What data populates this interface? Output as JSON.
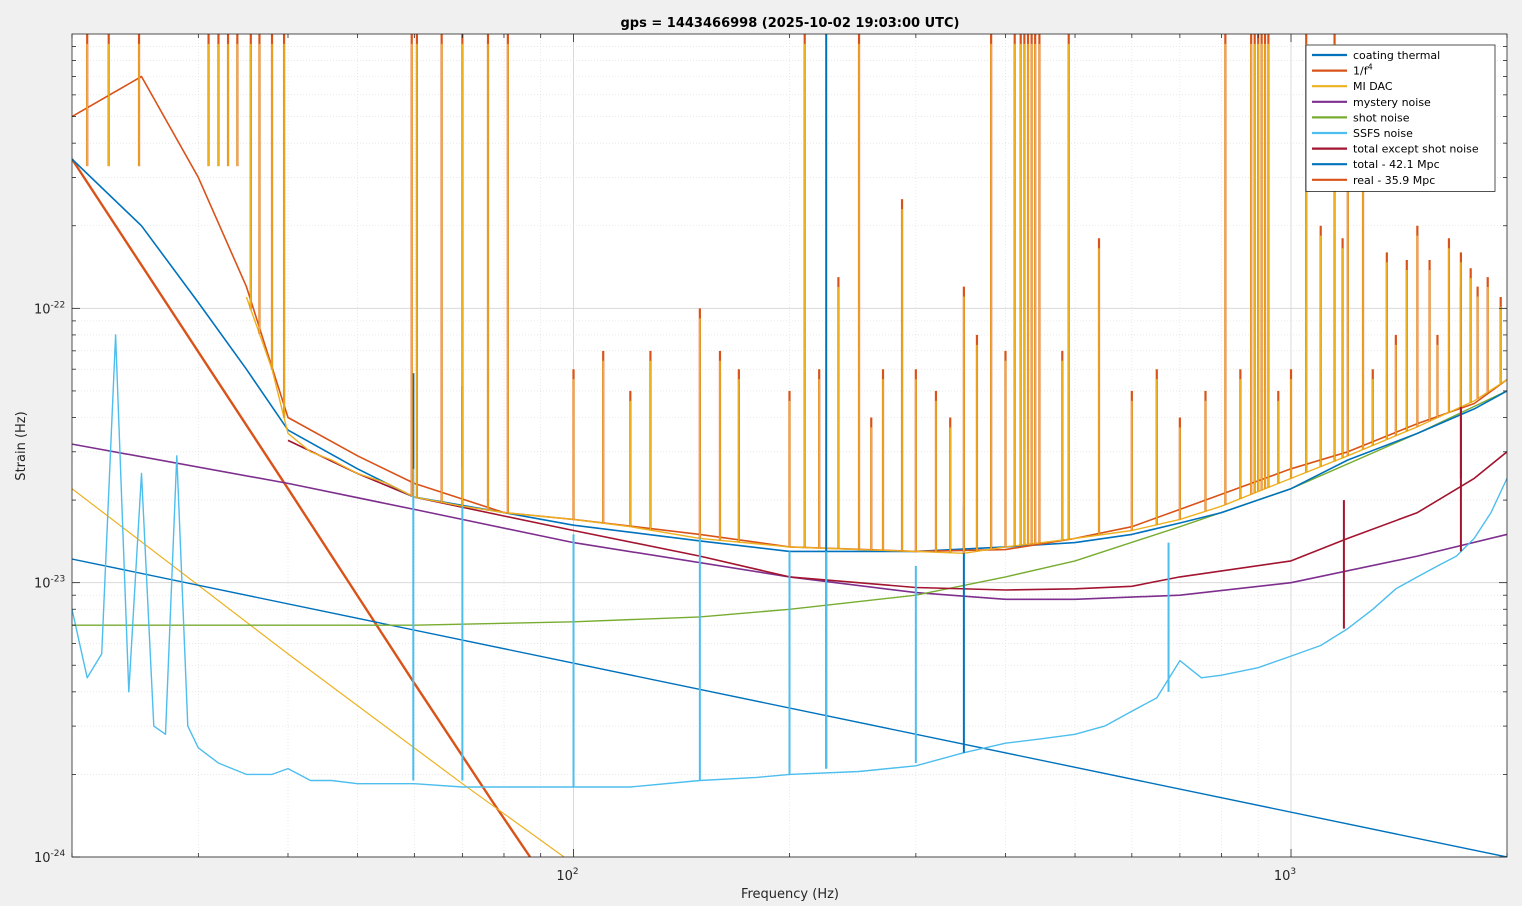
{
  "chart_data": {
    "type": "line",
    "title": "gps = 1443466998 (2025-10-02 19:03:00 UTC)",
    "xlabel": "Frequency (Hz)",
    "ylabel": "Strain (Hz)",
    "x_scale": "log",
    "y_scale": "log",
    "xlim": [
      20,
      2000
    ],
    "ylim": [
      1e-24,
      1e-21
    ],
    "grid": true,
    "minor_grid": true,
    "legend_position": "top-right",
    "x_ticks": [
      {
        "value": 100,
        "base": "10",
        "exp": "2"
      },
      {
        "value": 1000,
        "base": "10",
        "exp": "3"
      }
    ],
    "y_ticks": [
      {
        "value": 1e-24,
        "base": "10",
        "exp": "-24"
      },
      {
        "value": 1e-23,
        "base": "10",
        "exp": "-23"
      },
      {
        "value": 1e-22,
        "base": "10",
        "exp": "-22"
      }
    ],
    "series": [
      {
        "name": "coating thermal",
        "name_sup": "",
        "color": "#0072bd",
        "width": 1.4,
        "x": [
          20,
          2000
        ],
        "y": [
          1.22e-23,
          1e-24
        ]
      },
      {
        "name": "1/f",
        "name_sup": "4",
        "color": "#d95319",
        "width": 2.4,
        "x": [
          20,
          40,
          60,
          77,
          87
        ],
        "y": [
          3.5e-22,
          2.2e-23,
          4.3e-24,
          1.6e-24,
          1e-24
        ]
      },
      {
        "name": "MI DAC",
        "name_sup": "",
        "color": "#edb120",
        "width": 1.2,
        "x": [
          20,
          40,
          70,
          97
        ],
        "y": [
          2.2e-23,
          5.5e-24,
          1.85e-24,
          1e-24
        ]
      },
      {
        "name": "mystery noise",
        "name_sup": "",
        "color": "#7e2f8e",
        "width": 1.6,
        "x": [
          20,
          40,
          60,
          100,
          200,
          300,
          400,
          500,
          700,
          1000,
          1500,
          2000
        ],
        "y": [
          3.2e-23,
          2.3e-23,
          1.85e-23,
          1.4e-23,
          1.05e-23,
          9.2e-24,
          8.7e-24,
          8.7e-24,
          9e-24,
          1e-23,
          1.25e-23,
          1.5e-23
        ]
      },
      {
        "name": "shot noise",
        "name_sup": "",
        "color": "#77ac30",
        "width": 1.4,
        "x": [
          20,
          60,
          100,
          150,
          200,
          300,
          400,
          500,
          700,
          1000,
          1500,
          2000
        ],
        "y": [
          7e-24,
          7e-24,
          7.2e-24,
          7.5e-24,
          8e-24,
          9e-24,
          1.05e-23,
          1.2e-23,
          1.6e-23,
          2.2e-23,
          3.5e-23,
          5e-23
        ]
      },
      {
        "name": "SSFS noise",
        "name_sup": "",
        "color": "#4dbeee",
        "width": 1.4,
        "x": [
          20,
          21,
          22,
          23,
          24,
          25,
          26,
          27,
          28,
          29,
          30,
          32,
          35,
          38,
          40,
          43,
          46,
          50,
          55,
          60,
          70,
          80,
          100,
          120,
          150,
          180,
          200,
          250,
          300,
          350,
          400,
          450,
          500,
          550,
          600,
          650,
          700,
          750,
          800,
          900,
          1000,
          1100,
          1200,
          1300,
          1400,
          1500,
          1600,
          1700,
          1800,
          1900,
          2000
        ],
        "y": [
          8e-24,
          4.5e-24,
          5.5e-24,
          8e-23,
          4e-24,
          2.5e-23,
          3e-24,
          2.8e-24,
          2.9e-23,
          3e-24,
          2.5e-24,
          2.2e-24,
          2e-24,
          2e-24,
          2.1e-24,
          1.9e-24,
          1.9e-24,
          1.85e-24,
          1.85e-24,
          1.85e-24,
          1.8e-24,
          1.8e-24,
          1.8e-24,
          1.8e-24,
          1.9e-24,
          1.95e-24,
          2e-24,
          2.05e-24,
          2.15e-24,
          2.4e-24,
          2.6e-24,
          2.7e-24,
          2.8e-24,
          3e-24,
          3.4e-24,
          3.8e-24,
          5.2e-24,
          4.5e-24,
          4.6e-24,
          4.9e-24,
          5.4e-24,
          5.9e-24,
          6.8e-24,
          8e-24,
          9.5e-24,
          1.05e-23,
          1.15e-23,
          1.25e-23,
          1.45e-23,
          1.8e-23,
          2.4e-23
        ]
      },
      {
        "name": "total except shot noise",
        "name_sup": "",
        "color": "#a2142f",
        "width": 1.6,
        "x": [
          40,
          50,
          60,
          80,
          100,
          150,
          200,
          300,
          400,
          500,
          600,
          700,
          1000,
          1200,
          1500,
          1800,
          2000
        ],
        "y": [
          3.3e-23,
          2.5e-23,
          2.05e-23,
          1.75e-23,
          1.55e-23,
          1.25e-23,
          1.05e-23,
          9.6e-24,
          9.4e-24,
          9.5e-24,
          9.7e-24,
          1.05e-23,
          1.2e-23,
          1.45e-23,
          1.8e-23,
          2.4e-23,
          3e-23
        ]
      },
      {
        "name": "total - 42.1 Mpc",
        "name_sup": "",
        "color": "#0072bd",
        "width": 1.6,
        "x": [
          20,
          25,
          30,
          35,
          40,
          50,
          60,
          80,
          100,
          150,
          200,
          300,
          400,
          500,
          600,
          700,
          800,
          1000,
          1200,
          1500,
          1800,
          2000
        ],
        "y": [
          3.5e-22,
          2e-22,
          1.05e-22,
          6e-23,
          3.6e-23,
          2.6e-23,
          2.05e-23,
          1.8e-23,
          1.62e-23,
          1.42e-23,
          1.3e-23,
          1.3e-23,
          1.35e-23,
          1.4e-23,
          1.5e-23,
          1.65e-23,
          1.8e-23,
          2.2e-23,
          2.8e-23,
          3.5e-23,
          4.3e-23,
          5e-23
        ]
      },
      {
        "name": "real - 35.9 Mpc",
        "name_sup": "",
        "color": "#d95319",
        "width": 1.6,
        "x": [
          20,
          25,
          30,
          35,
          40,
          50,
          60,
          80,
          100,
          150,
          200,
          300,
          400,
          500,
          600,
          700,
          800,
          1000,
          1200,
          1500,
          1800,
          2000
        ],
        "y": [
          5e-22,
          7e-22,
          3e-22,
          1.2e-22,
          4e-23,
          2.9e-23,
          2.3e-23,
          1.8e-23,
          1.7e-23,
          1.5e-23,
          1.35e-23,
          1.3e-23,
          1.32e-23,
          1.45e-23,
          1.6e-23,
          1.85e-23,
          2.1e-23,
          2.6e-23,
          3e-23,
          3.8e-23,
          4.5e-23,
          5.5e-23
        ]
      },
      {
        "name": "",
        "name_sup": "",
        "color": "#edb120",
        "width": 1.4,
        "legend": false,
        "x": [
          35,
          38,
          40,
          43,
          46,
          50,
          55,
          60,
          70,
          80,
          100,
          120,
          150,
          200,
          250,
          300,
          350,
          400,
          450,
          500,
          600,
          700,
          800,
          1000,
          1200,
          1500,
          1800,
          2000
        ],
        "y": [
          1.1e-22,
          6e-23,
          3.5e-23,
          3e-23,
          2.8e-23,
          2.5e-23,
          2.3e-23,
          2.05e-23,
          1.9e-23,
          1.8e-23,
          1.7e-23,
          1.6e-23,
          1.45e-23,
          1.35e-23,
          1.32e-23,
          1.3e-23,
          1.28e-23,
          1.35e-23,
          1.4e-23,
          1.45e-23,
          1.55e-23,
          1.7e-23,
          1.9e-23,
          2.4e-23,
          2.9e-23,
          3.7e-23,
          4.6e-23,
          5.5e-23
        ]
      }
    ],
    "spikes": [
      {
        "x": 59.8,
        "ylo": 1.9e-24,
        "yhi": 5.8e-23,
        "color": "#4dbeee"
      },
      {
        "x": 59.8,
        "ylo": 2.6e-23,
        "yhi": 5.8e-23,
        "color": "#0072bd"
      },
      {
        "x": 70.0,
        "ylo": 1.9e-24,
        "yhi": 5.2e-23,
        "color": "#4dbeee"
      },
      {
        "x": 70.0,
        "ylo": 2.6e-23,
        "yhi": 5.2e-23,
        "color": "#0072bd"
      },
      {
        "x": 100,
        "ylo": 1.8e-24,
        "yhi": 1.5e-23,
        "color": "#4dbeee"
      },
      {
        "x": 150,
        "ylo": 1.9e-24,
        "yhi": 1.5e-23,
        "color": "#4dbeee"
      },
      {
        "x": 200,
        "ylo": 2e-24,
        "yhi": 1.3e-23,
        "color": "#4dbeee"
      },
      {
        "x": 225,
        "ylo": 2.1e-24,
        "yhi": 1e-21,
        "color": "#0072bd"
      },
      {
        "x": 225,
        "ylo": 2.1e-24,
        "yhi": 1.3e-23,
        "color": "#4dbeee"
      },
      {
        "x": 300,
        "ylo": 2.2e-24,
        "yhi": 1.15e-23,
        "color": "#4dbeee"
      },
      {
        "x": 350,
        "ylo": 2.4e-24,
        "yhi": 1.9e-23,
        "color": "#0072bd"
      },
      {
        "x": 675,
        "ylo": 4e-24,
        "yhi": 1.4e-23,
        "color": "#4dbeee"
      },
      {
        "x": 1185,
        "ylo": 6.8e-24,
        "yhi": 2e-23,
        "color": "#a2142f"
      },
      {
        "x": 1725,
        "ylo": 2.4e-23,
        "yhi": 1.2e-22,
        "color": "#0072bd"
      },
      {
        "x": 1725,
        "ylo": 1.3e-23,
        "yhi": 5e-23,
        "color": "#a2142f"
      }
    ],
    "dac_spikes": [
      [
        21,
        1e-21
      ],
      [
        22.5,
        1e-21
      ],
      [
        24.8,
        1e-21
      ],
      [
        31,
        1e-21
      ],
      [
        32,
        1e-21
      ],
      [
        33,
        1e-21
      ],
      [
        34,
        1e-21
      ],
      [
        35.5,
        1e-21
      ],
      [
        36.5,
        1e-21
      ],
      [
        38,
        1e-21
      ],
      [
        39.5,
        1e-21
      ],
      [
        59.5,
        1e-21
      ],
      [
        60.5,
        1e-21
      ],
      [
        65.5,
        1e-21
      ],
      [
        70,
        1e-21
      ],
      [
        76,
        1e-21
      ],
      [
        81,
        1e-21
      ],
      [
        100,
        6e-23
      ],
      [
        110,
        7e-23
      ],
      [
        120,
        5e-23
      ],
      [
        128,
        7e-23
      ],
      [
        150,
        1e-22
      ],
      [
        160,
        7e-23
      ],
      [
        170,
        6e-23
      ],
      [
        200,
        5e-23
      ],
      [
        210,
        1e-21
      ],
      [
        220,
        6e-23
      ],
      [
        234,
        1.3e-22
      ],
      [
        250,
        1e-21
      ],
      [
        260,
        4e-23
      ],
      [
        270,
        6e-23
      ],
      [
        287,
        2.5e-22
      ],
      [
        300,
        6e-23
      ],
      [
        320,
        5e-23
      ],
      [
        335,
        4e-23
      ],
      [
        350,
        1.2e-22
      ],
      [
        365,
        8e-23
      ],
      [
        382,
        1e-21
      ],
      [
        400,
        7e-23
      ],
      [
        412,
        1e-21
      ],
      [
        420,
        1e-21
      ],
      [
        425,
        1e-21
      ],
      [
        430,
        1e-21
      ],
      [
        435,
        1e-21
      ],
      [
        440,
        1e-21
      ],
      [
        446,
        1e-21
      ],
      [
        480,
        7e-23
      ],
      [
        490,
        1e-21
      ],
      [
        540,
        1.8e-22
      ],
      [
        600,
        5e-23
      ],
      [
        650,
        6e-23
      ],
      [
        700,
        4e-23
      ],
      [
        760,
        5e-23
      ],
      [
        810,
        1e-21
      ],
      [
        850,
        6e-23
      ],
      [
        880,
        1e-21
      ],
      [
        890,
        1e-21
      ],
      [
        900,
        1e-21
      ],
      [
        910,
        1e-21
      ],
      [
        920,
        1e-21
      ],
      [
        930,
        1e-21
      ],
      [
        960,
        5e-23
      ],
      [
        1000,
        6e-23
      ],
      [
        1050,
        1e-21
      ],
      [
        1100,
        2e-22
      ],
      [
        1150,
        1e-21
      ],
      [
        1180,
        1.8e-22
      ],
      [
        1200,
        3e-22
      ],
      [
        1260,
        3e-22
      ],
      [
        1300,
        6e-23
      ],
      [
        1360,
        1.6e-22
      ],
      [
        1400,
        8e-23
      ],
      [
        1450,
        1.5e-22
      ],
      [
        1500,
        2e-22
      ],
      [
        1560,
        1.5e-22
      ],
      [
        1600,
        8e-23
      ],
      [
        1660,
        1.8e-22
      ],
      [
        1725,
        1.6e-22
      ],
      [
        1780,
        1.4e-22
      ],
      [
        1820,
        1.2e-22
      ],
      [
        1880,
        1.3e-22
      ],
      [
        1960,
        1.1e-22
      ]
    ]
  }
}
